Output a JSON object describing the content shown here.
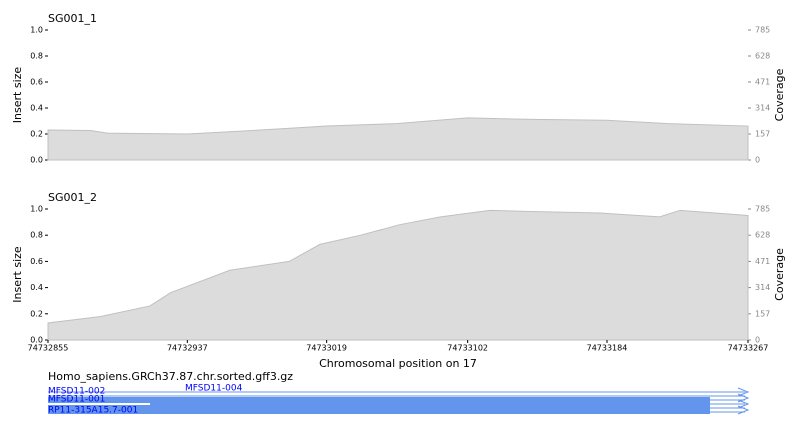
{
  "chart_data": [
    {
      "type": "area",
      "title": "SG001_1",
      "ylabel": "Insert size",
      "y2label": "Coverage",
      "xlim": [
        74732855,
        74733267
      ],
      "ylim": [
        0,
        1
      ],
      "yticks": [
        {
          "value": 0,
          "label": "0.0"
        },
        0.2,
        0.4,
        0.6,
        0.8,
        {
          "value": 1,
          "label": "1.0"
        }
      ],
      "y2lim": [
        0,
        785
      ],
      "y2ticks": [
        0,
        157,
        314,
        471,
        628,
        785
      ],
      "x": [
        74732855,
        74732880,
        74732890,
        74732937,
        74732970,
        74733019,
        74733060,
        74733102,
        74733140,
        74733184,
        74733220,
        74733267
      ],
      "series": [
        {
          "axis": "y2",
          "color": "#dcdcdc",
          "values": [
            181,
            178,
            162,
            157,
            175,
            205,
            220,
            254,
            245,
            240,
            220,
            205
          ]
        }
      ]
    },
    {
      "type": "area",
      "title": "SG001_2",
      "ylabel": "Insert size",
      "y2label": "Coverage",
      "xlabel": "Chromosomal position on 17",
      "xlim": [
        74732855,
        74733267
      ],
      "xticks": [
        74732855,
        74732937,
        74733019,
        74733102,
        74733184,
        74733267
      ],
      "ylim": [
        0,
        1
      ],
      "yticks": [
        {
          "value": 0,
          "label": "0.0"
        },
        0.2,
        0.4,
        0.6,
        0.8,
        {
          "value": 1,
          "label": "1.0"
        }
      ],
      "y2lim": [
        0,
        785
      ],
      "y2ticks": [
        0,
        157,
        314,
        471,
        628,
        785
      ],
      "x": [
        74732855,
        74732886,
        74732915,
        74732927,
        74732962,
        74732997,
        74733015,
        74733039,
        74733062,
        74733086,
        74733115,
        74733139,
        74733180,
        74733215,
        74733227,
        74733267
      ],
      "series": [
        {
          "axis": "y2",
          "color": "#dcdcdc",
          "values": [
            102,
            141,
            204,
            283,
            418,
            471,
            573,
            628,
            691,
            738,
            777,
            770,
            761,
            738,
            777,
            746
          ]
        }
      ]
    }
  ],
  "track": {
    "title": "Homo_sapiens.GRCh37.87.chr.sorted.gff3.gz",
    "labels": [
      "MFSD11-002",
      "MFSD11-004",
      "MFSD11-001",
      "RP11-315A15.7-001"
    ]
  }
}
